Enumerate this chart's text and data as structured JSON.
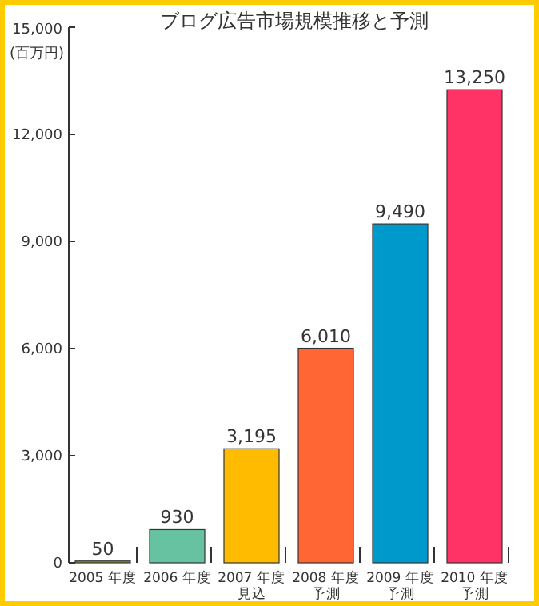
{
  "chart_data": {
    "type": "bar",
    "title": "ブログ広告市場規模推移と予測",
    "ylabel": "(百万円)",
    "categories": [
      "2005 年度",
      "2006 年度",
      "2007 年度見込",
      "2008 年度予測",
      "2009 年度予測",
      "2010 年度予測"
    ],
    "values": [
      50,
      930,
      3195,
      6010,
      9490,
      13250
    ],
    "value_labels": [
      "50",
      "930",
      "3,195",
      "6,010",
      "9,490",
      "13,250"
    ],
    "colors": [
      "#8a9a3a",
      "#66c2a0",
      "#ffbb00",
      "#ff6633",
      "#0099cc",
      "#ff3366"
    ],
    "ylim": [
      0,
      15000
    ],
    "yticks": [
      0,
      {
        "value": 3000,
        "label": "3,000"
      },
      {
        "value": 6000,
        "label": "6,000"
      },
      {
        "value": 9000,
        "label": "9,000"
      },
      {
        "value": 12000,
        "label": "12,000"
      },
      {
        "value": 15000,
        "label": "15,000"
      }
    ],
    "grid": false
  }
}
